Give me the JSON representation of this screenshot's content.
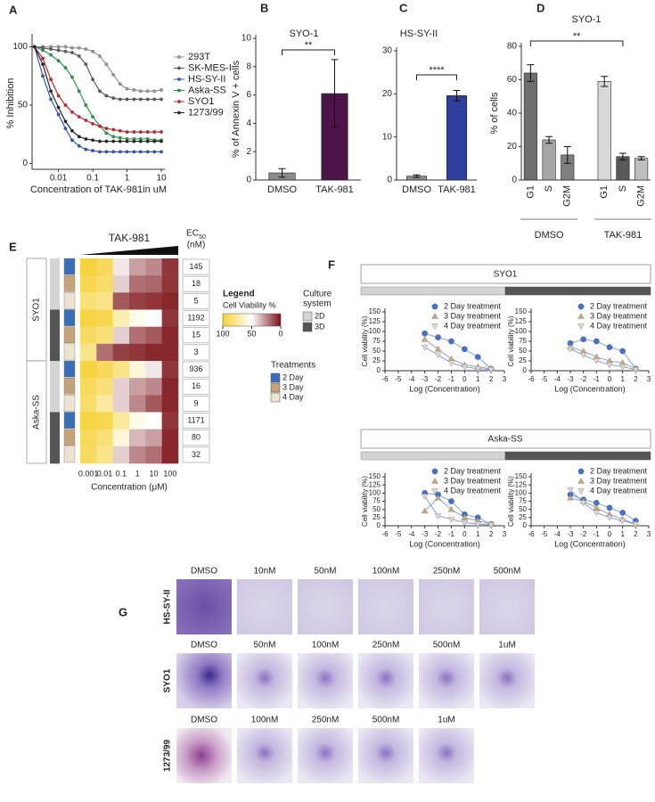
{
  "chart_data": [
    {
      "panel": "A",
      "type": "line",
      "xlog": true,
      "ylabel": "% Inhibition",
      "xlabel": "Concentration of TAK-981in uM",
      "x": [
        0.002,
        0.0035,
        0.006,
        0.01,
        0.016,
        0.025,
        0.04,
        0.063,
        0.1,
        0.16,
        0.25,
        0.4,
        0.63,
        1,
        1.6,
        2.5,
        4,
        6.3,
        10
      ],
      "xlim": [
        0.0017,
        12.7
      ],
      "xticks": [
        0.01,
        0.1,
        1,
        10
      ],
      "ylim": [
        -5,
        108
      ],
      "yticks": [
        0,
        50,
        100
      ],
      "legend": "right",
      "series": [
        {
          "name": "293T",
          "color": "#9a9a9a",
          "marker": "circle",
          "values": [
            100,
            100,
            100,
            100,
            100,
            99,
            99,
            98,
            96,
            92,
            85,
            76,
            68,
            64,
            63,
            62,
            62,
            62,
            63
          ]
        },
        {
          "name": "SK-MES-I",
          "color": "#5a5a5a",
          "marker": "circle",
          "values": [
            100,
            99,
            98,
            97,
            96,
            95,
            92,
            85,
            72,
            62,
            58,
            56,
            55,
            55,
            55,
            55,
            55,
            55,
            55
          ]
        },
        {
          "name": "HS-SY-II",
          "color": "#3355bb",
          "marker": "circle",
          "values": [
            100,
            75,
            55,
            42,
            30,
            20,
            15,
            12,
            11,
            10,
            10,
            10,
            10,
            10,
            10,
            10,
            10,
            10,
            10
          ]
        },
        {
          "name": "Aska-SS",
          "color": "#2a9a4a",
          "marker": "circle",
          "values": [
            100,
            97,
            93,
            88,
            82,
            74,
            62,
            50,
            40,
            32,
            26,
            23,
            22,
            21,
            21,
            21,
            21,
            20,
            20
          ]
        },
        {
          "name": "SYO1",
          "color": "#c0282d",
          "marker": "circle",
          "values": [
            100,
            90,
            72,
            58,
            50,
            44,
            40,
            37,
            34,
            32,
            30,
            29,
            28,
            27,
            27,
            27,
            27,
            27,
            27
          ]
        },
        {
          "name": "1273/99",
          "color": "#222222",
          "marker": "circle",
          "values": [
            100,
            85,
            62,
            48,
            36,
            28,
            23,
            21,
            20,
            19,
            19,
            19,
            19,
            19,
            19,
            19,
            19,
            19,
            19
          ]
        }
      ]
    },
    {
      "panel": "B",
      "type": "bar",
      "title": "SYO-1",
      "ylabel": "% of Annexin V + cells",
      "categories": [
        "DMSO",
        "TAK-981"
      ],
      "values": [
        0.5,
        6.1
      ],
      "errors": [
        0.3,
        2.4
      ],
      "colors": [
        "#8c8c8c",
        "#4b1548"
      ],
      "ylim": [
        0,
        10
      ],
      "yticks": [
        0,
        2,
        4,
        6,
        8,
        10
      ],
      "significance": "**"
    },
    {
      "panel": "C",
      "type": "bar",
      "title": "HS-SY-II",
      "categories": [
        "DMSO",
        "TAK-981"
      ],
      "values": [
        0.9,
        19.6
      ],
      "errors": [
        0.3,
        1.2
      ],
      "colors": [
        "#8c8c8c",
        "#2f3f9c"
      ],
      "ylim": [
        0,
        30
      ],
      "yticks": [
        0,
        10,
        20,
        30
      ],
      "significance": "****"
    },
    {
      "panel": "D",
      "type": "bar",
      "title": "SYO-1",
      "ylabel": "% of cells",
      "categories": [
        "G1",
        "S",
        "G2M",
        "G1",
        "S",
        "G2M"
      ],
      "groups": [
        "DMSO",
        "TAK-981"
      ],
      "values": [
        64,
        24,
        15,
        59,
        14,
        13
      ],
      "errors": [
        5,
        2,
        5,
        3,
        2,
        1
      ],
      "colors": [
        "#6e6e6e",
        "#a6a6a6",
        "#7f7f7f",
        "#d9d9d9",
        "#595959",
        "#bfbfbf"
      ],
      "ylim": [
        0,
        80
      ],
      "yticks": [
        0,
        20,
        40,
        60,
        80
      ],
      "significance": "**"
    },
    {
      "panel": "E",
      "type": "heatmap",
      "title": "TAK-981",
      "ec_label": "EC",
      "ec_sub": "50",
      "ec_unit": "(nM)",
      "xlabel": "Concentration (μM)",
      "categories": [
        "0.001",
        "0.01",
        "0.1",
        "1",
        "10",
        "100"
      ],
      "clim": [
        0,
        100
      ],
      "cticks": [
        100,
        50,
        0
      ],
      "legend_title": "Legend",
      "colorbar_label": "Cell Viability %",
      "culture_title": [
        "Culture",
        "system"
      ],
      "treatment_title": "Treatments",
      "culture_legend": [
        {
          "name": "2D",
          "color": "#d4d4d4"
        },
        {
          "name": "3D",
          "color": "#555555"
        }
      ],
      "treatment_legend": [
        {
          "name": "2 Day",
          "color": "#3a6fb5"
        },
        {
          "name": "3 Day",
          "color": "#c4a57a"
        },
        {
          "name": "4 Day",
          "color": "#ece3d3"
        }
      ],
      "row_groups": [
        {
          "name": "SYO1",
          "culture": [
            "2D",
            "2D",
            "2D",
            "3D",
            "3D",
            "3D"
          ],
          "treatment": [
            "2 Day",
            "3 Day",
            "4 Day",
            "2 Day",
            "3 Day",
            "4 Day"
          ]
        },
        {
          "name": "Aska-SS",
          "culture": [
            "2D",
            "2D",
            "2D",
            "3D",
            "3D",
            "3D"
          ],
          "treatment": [
            "2 Day",
            "3 Day",
            "4 Day",
            "2 Day",
            "3 Day",
            "4 Day"
          ]
        }
      ],
      "ec50": [
        145,
        18,
        5,
        1192,
        15,
        3,
        936,
        16,
        9,
        1171,
        80,
        32
      ],
      "values": [
        [
          100,
          92,
          45,
          30,
          25,
          8
        ],
        [
          95,
          88,
          40,
          20,
          18,
          8
        ],
        [
          85,
          80,
          15,
          10,
          8,
          5
        ],
        [
          98,
          95,
          70,
          55,
          50,
          8
        ],
        [
          90,
          85,
          40,
          20,
          15,
          5
        ],
        [
          80,
          20,
          10,
          8,
          5,
          5
        ],
        [
          98,
          92,
          80,
          60,
          45,
          8
        ],
        [
          92,
          85,
          40,
          30,
          25,
          5
        ],
        [
          88,
          75,
          40,
          25,
          15,
          5
        ],
        [
          98,
          95,
          75,
          55,
          50,
          8
        ],
        [
          92,
          85,
          60,
          35,
          30,
          5
        ],
        [
          90,
          80,
          40,
          25,
          20,
          5
        ]
      ]
    },
    {
      "type": "line",
      "xlabel": "Log (Concentration)",
      "ylabel": "Cell viability (%)",
      "x": [
        -3,
        -2,
        -1,
        0,
        1,
        2
      ],
      "xlim": [
        -6,
        3
      ],
      "xticks": [
        -6,
        -5,
        -4,
        -3,
        -2,
        -1,
        0,
        1,
        2,
        3
      ],
      "ylim": [
        0,
        150
      ],
      "yticks": [
        0,
        25,
        50,
        75,
        100,
        125,
        150
      ],
      "legend": "top-right",
      "series": [
        {
          "name": "2 Day treatment",
          "color": "#4472c4",
          "marker": "circle",
          "values": [
            95,
            85,
            75,
            55,
            35,
            5
          ]
        },
        {
          "name": "3 Day treatment",
          "color": "#c9a77c",
          "marker": "triangle",
          "values": [
            80,
            55,
            30,
            15,
            10,
            5
          ]
        },
        {
          "name": "4 Day treatment",
          "color": "#dcd6cf",
          "marker": "triangle-down",
          "values": [
            60,
            40,
            20,
            10,
            5,
            3
          ]
        }
      ]
    },
    {
      "type": "line",
      "xlabel": "Log (Concentration)",
      "ylabel": "Cell viability (%)",
      "x": [
        -3,
        -2,
        -1,
        0,
        1,
        2
      ],
      "xlim": [
        -6,
        3
      ],
      "xticks": [
        -6,
        -5,
        -4,
        -3,
        -2,
        -1,
        0,
        1,
        2,
        3
      ],
      "ylim": [
        0,
        150
      ],
      "yticks": [
        0,
        25,
        50,
        75,
        100,
        125,
        150
      ],
      "legend": "top-right",
      "series": [
        {
          "name": "2 Day treatment",
          "color": "#4472c4",
          "marker": "circle",
          "values": [
            70,
            80,
            75,
            60,
            50,
            5
          ]
        },
        {
          "name": "3 Day treatment",
          "color": "#c9a77c",
          "marker": "triangle",
          "values": [
            60,
            50,
            35,
            25,
            20,
            5
          ]
        },
        {
          "name": "4 Day treatment",
          "color": "#dcd6cf",
          "marker": "triangle-down",
          "values": [
            55,
            40,
            25,
            15,
            10,
            3
          ]
        }
      ]
    },
    {
      "type": "line",
      "xlabel": "Log (Concentration)",
      "ylabel": "Cell viability (%)",
      "x": [
        -3,
        -2,
        -1,
        0,
        1,
        2
      ],
      "xlim": [
        -6,
        3
      ],
      "xticks": [
        -6,
        -5,
        -4,
        -3,
        -2,
        -1,
        0,
        1,
        2,
        3
      ],
      "ylim": [
        0,
        150
      ],
      "yticks": [
        0,
        25,
        50,
        75,
        100,
        125,
        150
      ],
      "legend": "top-right",
      "series": [
        {
          "name": "2 Day treatment",
          "color": "#4472c4",
          "marker": "circle",
          "values": [
            100,
            95,
            75,
            35,
            25,
            5
          ]
        },
        {
          "name": "3 Day treatment",
          "color": "#c9a77c",
          "marker": "triangle",
          "values": [
            45,
            85,
            50,
            25,
            15,
            5
          ]
        },
        {
          "name": "4 Day treatment",
          "color": "#dcd6cf",
          "marker": "triangle-down",
          "values": [
            90,
            30,
            20,
            10,
            5,
            3
          ]
        }
      ]
    },
    {
      "type": "line",
      "xlabel": "Log (Concentration)",
      "ylabel": "Cell viability (%)",
      "x": [
        -3,
        -2,
        -1,
        0,
        1,
        2
      ],
      "xlim": [
        -6,
        3
      ],
      "xticks": [
        -6,
        -5,
        -4,
        -3,
        -2,
        -1,
        0,
        1,
        2,
        3
      ],
      "ylim": [
        0,
        150
      ],
      "yticks": [
        0,
        25,
        50,
        75,
        100,
        125,
        150
      ],
      "legend": "top-right",
      "series": [
        {
          "name": "2 Day treatment",
          "color": "#4472c4",
          "marker": "circle",
          "values": [
            95,
            80,
            70,
            55,
            40,
            15
          ]
        },
        {
          "name": "3 Day treatment",
          "color": "#c9a77c",
          "marker": "triangle",
          "values": [
            85,
            75,
            55,
            35,
            20,
            5
          ]
        },
        {
          "name": "4 Day treatment",
          "color": "#dcd6cf",
          "marker": "triangle-down",
          "values": [
            110,
            70,
            40,
            25,
            15,
            5
          ]
        }
      ]
    }
  ],
  "panel_f": {
    "panel": "F",
    "groups": [
      "SYO1",
      "Aska-SS"
    ]
  },
  "panel_g": {
    "panel": "G",
    "rows": [
      {
        "name": "HS-SY-II",
        "conditions": [
          "DMSO",
          "10nM",
          "50nM",
          "100nM",
          "250nM",
          "500nM"
        ]
      },
      {
        "name": "SYO1",
        "conditions": [
          "DMSO",
          "50nM",
          "100nM",
          "250nM",
          "500nM",
          "1uM"
        ]
      },
      {
        "name": "1273/99",
        "conditions": [
          "DMSO",
          "100nM",
          "250nM",
          "500nM",
          "1uM"
        ]
      }
    ]
  }
}
